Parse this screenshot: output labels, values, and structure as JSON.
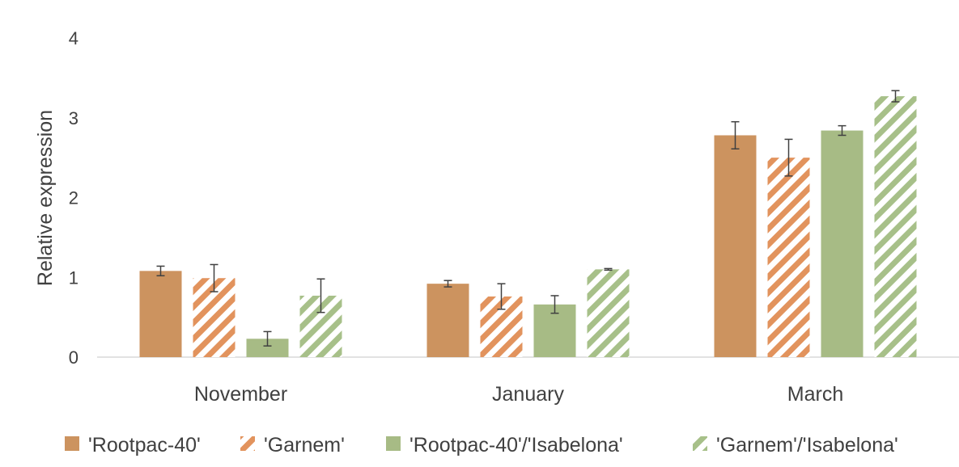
{
  "chart_data": {
    "type": "bar",
    "title": "",
    "xlabel": "",
    "ylabel": "Relative expression",
    "ylim": [
      0,
      4
    ],
    "yticks": [
      0,
      1,
      2,
      3,
      4
    ],
    "grid": false,
    "legend_position": "bottom",
    "categories": [
      "November",
      "January",
      "March"
    ],
    "series": [
      {
        "name": "'Rootpac-40'",
        "values": [
          1.08,
          0.92,
          2.78
        ],
        "errors": [
          0.06,
          0.04,
          0.17
        ],
        "color": "#cc935f",
        "pattern": "solid"
      },
      {
        "name": "'Garnem'",
        "values": [
          0.99,
          0.76,
          2.5
        ],
        "errors": [
          0.17,
          0.16,
          0.23
        ],
        "color": "#e2935d",
        "pattern": "stripes"
      },
      {
        "name": "'Rootpac-40'/'Isabelona'",
        "values": [
          0.23,
          0.66,
          2.84
        ],
        "errors": [
          0.09,
          0.11,
          0.06
        ],
        "color": "#a7bb85",
        "pattern": "solid"
      },
      {
        "name": "'Garnem'/'Isabelona'",
        "values": [
          0.77,
          1.1,
          3.27
        ],
        "errors": [
          0.21,
          0.01,
          0.07
        ],
        "color": "#a7c089",
        "pattern": "stripes"
      }
    ]
  }
}
